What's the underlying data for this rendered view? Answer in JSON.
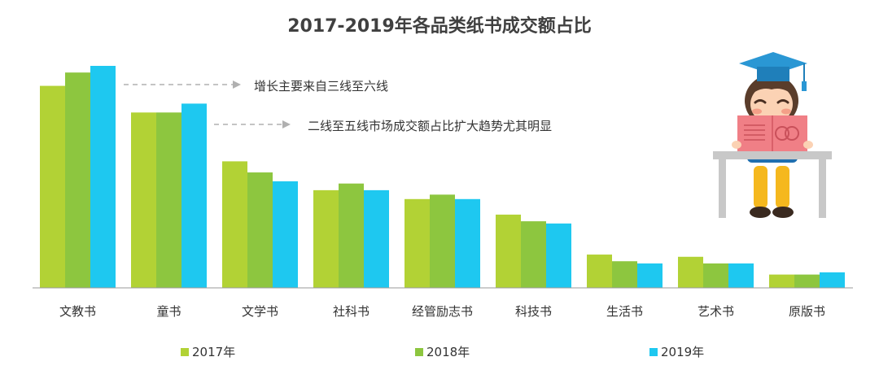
{
  "chart_data": {
    "type": "bar",
    "title": "2017-2019年各品类纸书成交额占比",
    "xlabel": "",
    "ylabel": "",
    "ylim": [
      0,
      100
    ],
    "grid": false,
    "legend_position": "bottom",
    "categories": [
      "文教书",
      "童书",
      "文学书",
      "社科书",
      "经管励志书",
      "科技书",
      "生活书",
      "艺术书",
      "原版书"
    ],
    "series": [
      {
        "name": "2017年",
        "color": "#b2d235",
        "values": [
          91,
          79,
          57,
          44,
          40,
          33,
          15,
          14,
          6
        ]
      },
      {
        "name": "2018年",
        "color": "#8dc63f",
        "values": [
          97,
          79,
          52,
          47,
          42,
          30,
          12,
          11,
          6
        ]
      },
      {
        "name": "2019年",
        "color": "#1ec8f0",
        "values": [
          100,
          83,
          48,
          44,
          40,
          29,
          11,
          11,
          7
        ]
      }
    ],
    "annotations": [
      {
        "text": "增长主要来自三线至六线"
      },
      {
        "text": "二线至五线市场成交额占比扩大趋势尤其明显"
      }
    ]
  },
  "illustration": {
    "icon": "student-reading-book-icon"
  }
}
